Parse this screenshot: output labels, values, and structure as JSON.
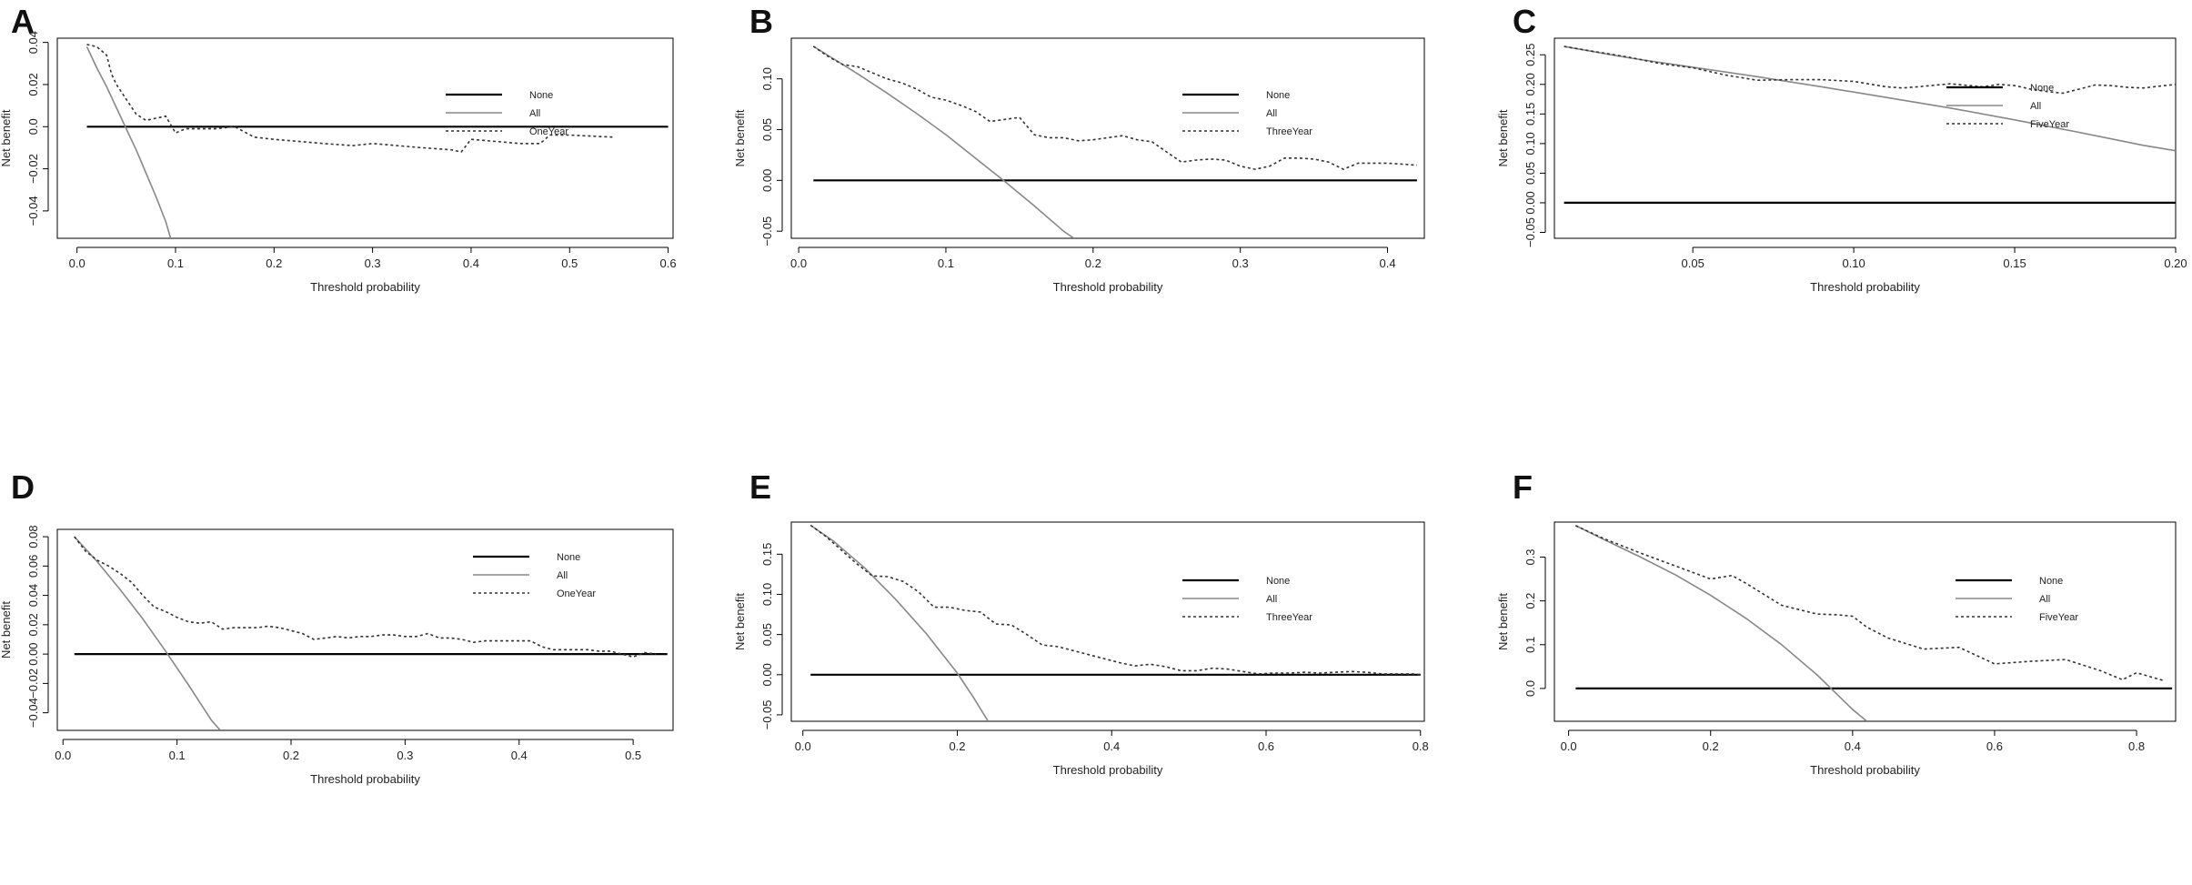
{
  "figure": {
    "line_colors": {
      "none": "#000000",
      "all": "#888888",
      "model": "#333333"
    }
  },
  "chart_data": [
    {
      "panel": "A",
      "type": "line",
      "xlabel": "Threshold probability",
      "ylabel": "Net benefit",
      "xlim": [
        -0.02,
        0.605
      ],
      "ylim": [
        -0.053,
        0.042
      ],
      "xticks": [
        0.0,
        0.1,
        0.2,
        0.3,
        0.4,
        0.5,
        0.6
      ],
      "xtick_labels": [
        "0.0",
        "0.1",
        "0.2",
        "0.3",
        "0.4",
        "0.5",
        "0.6"
      ],
      "yticks": [
        -0.04,
        -0.02,
        0.0,
        0.02,
        0.04
      ],
      "ytick_labels": [
        "−0.04",
        "−0.02",
        "0.0",
        "0.02",
        "0.04"
      ],
      "legend": [
        "None",
        "All",
        "OneYear"
      ],
      "series": [
        {
          "name": "None",
          "style": "solid",
          "x": [
            0.01,
            0.6
          ],
          "y": [
            0,
            0
          ]
        },
        {
          "name": "All",
          "style": "solid",
          "x": [
            0.01,
            0.02,
            0.03,
            0.04,
            0.05,
            0.06,
            0.07,
            0.08,
            0.09,
            0.095
          ],
          "y": [
            0.038,
            0.028,
            0.019,
            0.009,
            -0.001,
            -0.011,
            -0.022,
            -0.033,
            -0.045,
            -0.053
          ]
        },
        {
          "name": "OneYear",
          "style": "dotted",
          "x": [
            0.01,
            0.02,
            0.03,
            0.035,
            0.04,
            0.05,
            0.06,
            0.07,
            0.08,
            0.09,
            0.1,
            0.11,
            0.12,
            0.14,
            0.16,
            0.18,
            0.2,
            0.25,
            0.28,
            0.3,
            0.35,
            0.38,
            0.39,
            0.4,
            0.45,
            0.47,
            0.48,
            0.5,
            0.545
          ],
          "y": [
            0.039,
            0.038,
            0.034,
            0.025,
            0.02,
            0.013,
            0.006,
            0.003,
            0.004,
            0.005,
            -0.003,
            -0.001,
            -0.001,
            -0.001,
            0.0,
            -0.005,
            -0.006,
            -0.008,
            -0.009,
            -0.008,
            -0.01,
            -0.011,
            -0.012,
            -0.006,
            -0.008,
            -0.008,
            -0.004,
            -0.004,
            -0.005
          ]
        }
      ]
    },
    {
      "panel": "B",
      "type": "line",
      "xlabel": "Threshold probability",
      "ylabel": "Net benefit",
      "xlim": [
        -0.005,
        0.425
      ],
      "ylim": [
        -0.057,
        0.14
      ],
      "xticks": [
        0.0,
        0.1,
        0.2,
        0.3,
        0.4
      ],
      "xtick_labels": [
        "0.0",
        "0.1",
        "0.2",
        "0.3",
        "0.4"
      ],
      "yticks": [
        -0.05,
        0.0,
        0.05,
        0.1
      ],
      "ytick_labels": [
        "−0.05",
        "0.00",
        "0.05",
        "0.10"
      ],
      "legend": [
        "None",
        "All",
        "ThreeYear"
      ],
      "series": [
        {
          "name": "None",
          "style": "solid",
          "x": [
            0.01,
            0.42
          ],
          "y": [
            0,
            0
          ]
        },
        {
          "name": "All",
          "style": "solid",
          "x": [
            0.01,
            0.02,
            0.04,
            0.06,
            0.08,
            0.1,
            0.12,
            0.14,
            0.16,
            0.18,
            0.187
          ],
          "y": [
            0.132,
            0.123,
            0.105,
            0.086,
            0.066,
            0.045,
            0.022,
            -0.001,
            -0.025,
            -0.05,
            -0.057
          ]
        },
        {
          "name": "ThreeYear",
          "style": "dotted",
          "x": [
            0.01,
            0.02,
            0.03,
            0.04,
            0.05,
            0.06,
            0.07,
            0.08,
            0.09,
            0.1,
            0.11,
            0.12,
            0.13,
            0.14,
            0.15,
            0.16,
            0.17,
            0.18,
            0.19,
            0.2,
            0.21,
            0.22,
            0.23,
            0.24,
            0.25,
            0.26,
            0.27,
            0.28,
            0.29,
            0.3,
            0.31,
            0.32,
            0.33,
            0.34,
            0.35,
            0.36,
            0.37,
            0.38,
            0.39,
            0.4,
            0.41,
            0.42
          ],
          "y": [
            0.132,
            0.122,
            0.114,
            0.112,
            0.106,
            0.1,
            0.096,
            0.09,
            0.082,
            0.079,
            0.074,
            0.068,
            0.058,
            0.06,
            0.062,
            0.045,
            0.042,
            0.042,
            0.039,
            0.04,
            0.042,
            0.044,
            0.04,
            0.038,
            0.028,
            0.018,
            0.02,
            0.021,
            0.02,
            0.014,
            0.011,
            0.014,
            0.022,
            0.022,
            0.021,
            0.018,
            0.011,
            0.017,
            0.017,
            0.017,
            0.016,
            0.015
          ]
        }
      ]
    },
    {
      "panel": "C",
      "type": "line",
      "xlabel": "Threshold probability",
      "ylabel": "Net benefit",
      "xlim": [
        0.007,
        0.2
      ],
      "ylim": [
        -0.06,
        0.278
      ],
      "xticks": [
        0.05,
        0.1,
        0.15,
        0.2
      ],
      "xtick_labels": [
        "0.05",
        "0.10",
        "0.15",
        "0.20"
      ],
      "yticks": [
        -0.05,
        0.0,
        0.05,
        0.1,
        0.15,
        0.2,
        0.25
      ],
      "ytick_labels": [
        "−0.05",
        "0.00",
        "0.05",
        "0.10",
        "0.15",
        "0.20",
        "0.25"
      ],
      "legend": [
        "None",
        "All",
        "FiveYear"
      ],
      "series": [
        {
          "name": "None",
          "style": "solid",
          "x": [
            0.01,
            0.2
          ],
          "y": [
            0,
            0
          ]
        },
        {
          "name": "All",
          "style": "solid",
          "x": [
            0.01,
            0.03,
            0.05,
            0.07,
            0.09,
            0.11,
            0.13,
            0.15,
            0.17,
            0.19,
            0.2
          ],
          "y": [
            0.264,
            0.245,
            0.229,
            0.213,
            0.196,
            0.178,
            0.16,
            0.14,
            0.119,
            0.097,
            0.088
          ]
        },
        {
          "name": "FiveYear",
          "style": "dotted",
          "x": [
            0.01,
            0.02,
            0.03,
            0.04,
            0.05,
            0.06,
            0.07,
            0.08,
            0.09,
            0.1,
            0.11,
            0.115,
            0.12,
            0.13,
            0.14,
            0.145,
            0.15,
            0.155,
            0.16,
            0.165,
            0.17,
            0.175,
            0.18,
            0.185,
            0.19,
            0.195,
            0.2
          ],
          "y": [
            0.264,
            0.255,
            0.246,
            0.235,
            0.228,
            0.216,
            0.207,
            0.208,
            0.208,
            0.205,
            0.196,
            0.194,
            0.196,
            0.201,
            0.196,
            0.2,
            0.198,
            0.192,
            0.188,
            0.185,
            0.192,
            0.199,
            0.198,
            0.195,
            0.194,
            0.197,
            0.2
          ]
        }
      ]
    },
    {
      "panel": "D",
      "type": "line",
      "xlabel": "Threshold probability",
      "ylabel": "Net benefit",
      "xlim": [
        -0.005,
        0.535
      ],
      "ylim": [
        -0.052,
        0.085
      ],
      "xticks": [
        0.0,
        0.1,
        0.2,
        0.3,
        0.4,
        0.5
      ],
      "xtick_labels": [
        "0.0",
        "0.1",
        "0.2",
        "0.3",
        "0.4",
        "0.5"
      ],
      "yticks": [
        -0.04,
        -0.02,
        0.0,
        0.02,
        0.04,
        0.06,
        0.08
      ],
      "ytick_labels": [
        "−0.04",
        "−0.02",
        "0.00",
        "0.02",
        "0.04",
        "0.06",
        "0.08"
      ],
      "legend": [
        "None",
        "All",
        "OneYear"
      ],
      "series": [
        {
          "name": "None",
          "style": "solid",
          "x": [
            0.01,
            0.53
          ],
          "y": [
            0,
            0
          ]
        },
        {
          "name": "All",
          "style": "solid",
          "x": [
            0.01,
            0.03,
            0.05,
            0.07,
            0.09,
            0.11,
            0.13,
            0.138
          ],
          "y": [
            0.08,
            0.063,
            0.044,
            0.024,
            0.002,
            -0.021,
            -0.045,
            -0.052
          ]
        },
        {
          "name": "OneYear",
          "style": "dotted",
          "x": [
            0.01,
            0.02,
            0.03,
            0.04,
            0.05,
            0.06,
            0.07,
            0.08,
            0.09,
            0.1,
            0.11,
            0.12,
            0.13,
            0.14,
            0.15,
            0.16,
            0.17,
            0.18,
            0.19,
            0.2,
            0.21,
            0.22,
            0.23,
            0.24,
            0.25,
            0.26,
            0.27,
            0.28,
            0.29,
            0.3,
            0.31,
            0.32,
            0.33,
            0.34,
            0.35,
            0.36,
            0.37,
            0.38,
            0.39,
            0.4,
            0.41,
            0.42,
            0.43,
            0.44,
            0.45,
            0.46,
            0.47,
            0.48,
            0.49,
            0.5,
            0.51,
            0.52
          ],
          "y": [
            0.08,
            0.07,
            0.064,
            0.06,
            0.055,
            0.049,
            0.04,
            0.032,
            0.029,
            0.025,
            0.022,
            0.021,
            0.022,
            0.017,
            0.018,
            0.018,
            0.018,
            0.019,
            0.018,
            0.016,
            0.014,
            0.01,
            0.011,
            0.012,
            0.011,
            0.012,
            0.012,
            0.013,
            0.013,
            0.012,
            0.012,
            0.014,
            0.011,
            0.011,
            0.01,
            0.008,
            0.009,
            0.009,
            0.009,
            0.009,
            0.009,
            0.005,
            0.003,
            0.003,
            0.003,
            0.003,
            0.002,
            0.002,
            0.0,
            -0.002,
            0.001,
            0.0
          ]
        }
      ]
    },
    {
      "panel": "E",
      "type": "line",
      "xlabel": "Threshold probability",
      "ylabel": "Net benefit",
      "xlim": [
        -0.015,
        0.805
      ],
      "ylim": [
        -0.058,
        0.19
      ],
      "xticks": [
        0.0,
        0.2,
        0.4,
        0.6,
        0.8
      ],
      "xtick_labels": [
        "0.0",
        "0.2",
        "0.4",
        "0.6",
        "0.8"
      ],
      "yticks": [
        -0.05,
        0.0,
        0.05,
        0.1,
        0.15
      ],
      "ytick_labels": [
        "−0.05",
        "0.00",
        "0.05",
        "0.10",
        "0.15"
      ],
      "legend": [
        "None",
        "All",
        "ThreeYear"
      ],
      "series": [
        {
          "name": "None",
          "style": "solid",
          "x": [
            0.01,
            0.8
          ],
          "y": [
            0,
            0
          ]
        },
        {
          "name": "All",
          "style": "solid",
          "x": [
            0.01,
            0.04,
            0.08,
            0.12,
            0.16,
            0.2,
            0.22,
            0.24
          ],
          "y": [
            0.186,
            0.166,
            0.133,
            0.094,
            0.051,
            0.002,
            -0.027,
            -0.058
          ]
        },
        {
          "name": "ThreeYear",
          "style": "dotted",
          "x": [
            0.01,
            0.03,
            0.05,
            0.07,
            0.09,
            0.11,
            0.13,
            0.15,
            0.17,
            0.19,
            0.21,
            0.23,
            0.25,
            0.27,
            0.29,
            0.31,
            0.33,
            0.35,
            0.37,
            0.39,
            0.41,
            0.43,
            0.45,
            0.47,
            0.49,
            0.51,
            0.53,
            0.55,
            0.57,
            0.59,
            0.61,
            0.63,
            0.65,
            0.67,
            0.69,
            0.71,
            0.73,
            0.75,
            0.77,
            0.79,
            0.8
          ],
          "y": [
            0.186,
            0.172,
            0.155,
            0.138,
            0.123,
            0.122,
            0.116,
            0.103,
            0.084,
            0.084,
            0.08,
            0.078,
            0.063,
            0.062,
            0.05,
            0.037,
            0.035,
            0.03,
            0.025,
            0.02,
            0.015,
            0.011,
            0.013,
            0.01,
            0.005,
            0.005,
            0.008,
            0.007,
            0.004,
            0.001,
            0.002,
            0.002,
            0.003,
            0.002,
            0.003,
            0.004,
            0.003,
            0.001,
            0.001,
            0.001,
            0.0
          ]
        }
      ]
    },
    {
      "panel": "F",
      "type": "line",
      "xlabel": "Threshold probability",
      "ylabel": "Net benefit",
      "xlim": [
        -0.02,
        0.855
      ],
      "ylim": [
        -0.075,
        0.38
      ],
      "xticks": [
        0.0,
        0.2,
        0.4,
        0.6,
        0.8
      ],
      "xtick_labels": [
        "0.0",
        "0.2",
        "0.4",
        "0.6",
        "0.8"
      ],
      "yticks": [
        0.0,
        0.1,
        0.2,
        0.3
      ],
      "ytick_labels": [
        "0.0",
        "0.1",
        "0.2",
        "0.3"
      ],
      "legend": [
        "None",
        "All",
        "FiveYear"
      ],
      "series": [
        {
          "name": "None",
          "style": "solid",
          "x": [
            0.01,
            0.85
          ],
          "y": [
            0,
            0
          ]
        },
        {
          "name": "All",
          "style": "solid",
          "x": [
            0.01,
            0.05,
            0.1,
            0.15,
            0.2,
            0.25,
            0.3,
            0.35,
            0.4,
            0.42
          ],
          "y": [
            0.372,
            0.34,
            0.301,
            0.26,
            0.213,
            0.16,
            0.1,
            0.031,
            -0.048,
            -0.075
          ]
        },
        {
          "name": "FiveYear",
          "style": "dotted",
          "x": [
            0.01,
            0.05,
            0.1,
            0.15,
            0.2,
            0.23,
            0.25,
            0.3,
            0.35,
            0.38,
            0.4,
            0.42,
            0.45,
            0.5,
            0.55,
            0.6,
            0.65,
            0.7,
            0.75,
            0.78,
            0.8,
            0.84
          ],
          "y": [
            0.372,
            0.342,
            0.31,
            0.28,
            0.25,
            0.258,
            0.24,
            0.19,
            0.17,
            0.168,
            0.165,
            0.14,
            0.115,
            0.09,
            0.094,
            0.056,
            0.062,
            0.066,
            0.04,
            0.02,
            0.036,
            0.017
          ]
        }
      ]
    }
  ]
}
